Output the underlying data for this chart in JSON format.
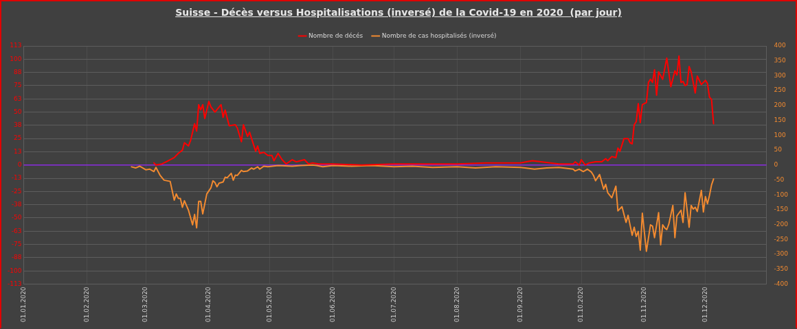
{
  "chart_data": {
    "type": "line",
    "title": "Suisse - Décès versus Hospitalisations (inversé) de la Covid-19 en 2020  (par jour)",
    "legend": "top",
    "grid": true,
    "marker": "none",
    "line_style": "solid",
    "xlim": [
      "2020-01-01",
      "2020-12-31"
    ],
    "xticks": [
      {
        "value": "2020-01-01",
        "label": "01.01.2020"
      },
      {
        "value": "2020-02-01",
        "label": "01.02.2020"
      },
      {
        "value": "2020-03-01",
        "label": "01.03.2020"
      },
      {
        "value": "2020-04-01",
        "label": "01.04.2020"
      },
      {
        "value": "2020-05-01",
        "label": "01.05.2020"
      },
      {
        "value": "2020-06-01",
        "label": "01.06.2020"
      },
      {
        "value": "2020-07-01",
        "label": "01.07.2020"
      },
      {
        "value": "2020-08-01",
        "label": "01.08.2020"
      },
      {
        "value": "2020-09-01",
        "label": "01.09.2020"
      },
      {
        "value": "2020-10-01",
        "label": "01.10.2020"
      },
      {
        "value": "2020-11-01",
        "label": "01.11.2020"
      },
      {
        "value": "2020-12-01",
        "label": "01.12.2020"
      }
    ],
    "ylim": [
      -112.5,
      112.5
    ],
    "yticks": [
      {
        "value": -112.5,
        "label": "-113"
      },
      -100,
      {
        "value": -87.5,
        "label": "-88"
      },
      -75,
      {
        "value": -62.5,
        "label": "-63"
      },
      -50,
      {
        "value": -37.5,
        "label": "-38"
      },
      -25,
      {
        "value": -12.5,
        "label": "-13"
      },
      0,
      {
        "value": 12.5,
        "label": "13"
      },
      25,
      {
        "value": 37.5,
        "label": "38"
      },
      50,
      {
        "value": 62.5,
        "label": "63"
      },
      75,
      {
        "value": 87.5,
        "label": "88"
      },
      100,
      {
        "value": 112.5,
        "label": "113"
      }
    ],
    "ref_lines": [
      {
        "axis": "y",
        "value": 0,
        "color": "#8a2be2"
      }
    ],
    "y2lim": [
      -400,
      400
    ],
    "y2ticks": [
      -400,
      -350,
      -300,
      -250,
      -200,
      -150,
      -100,
      -50,
      0,
      50,
      100,
      150,
      200,
      250,
      300,
      350,
      400
    ],
    "series": [
      {
        "name": "Nombre de décés",
        "color": "#ff0000",
        "x": [
          "2020-03-05",
          "2020-03-06",
          "2020-03-09",
          "2020-03-12",
          "2020-03-15",
          "2020-03-17",
          "2020-03-19",
          "2020-03-20",
          "2020-03-22",
          "2020-03-23",
          "2020-03-25",
          "2020-03-26",
          "2020-03-27",
          "2020-03-28",
          "2020-03-29",
          "2020-03-30",
          "2020-04-01",
          "2020-04-02",
          "2020-04-04",
          "2020-04-07",
          "2020-04-08",
          "2020-04-09",
          "2020-04-11",
          "2020-04-14",
          "2020-04-15",
          "2020-04-17",
          "2020-04-18",
          "2020-04-20",
          "2020-04-21",
          "2020-04-22",
          "2020-04-24",
          "2020-04-25",
          "2020-04-26",
          "2020-04-28",
          "2020-04-30",
          "2020-05-02",
          "2020-05-03",
          "2020-05-05",
          "2020-05-07",
          "2020-05-09",
          "2020-05-12",
          "2020-05-14",
          "2020-05-16",
          "2020-05-18",
          "2020-05-20",
          "2020-05-22",
          "2020-05-25",
          "2020-06-01",
          "2020-06-15",
          "2020-07-01",
          "2020-07-15",
          "2020-08-01",
          "2020-08-15",
          "2020-09-01",
          "2020-09-07",
          "2020-09-20",
          "2020-09-27",
          "2020-09-28",
          "2020-09-30",
          "2020-10-01",
          "2020-10-03",
          "2020-10-05",
          "2020-10-08",
          "2020-10-11",
          "2020-10-13",
          "2020-10-14",
          "2020-10-16",
          "2020-10-18",
          "2020-10-19",
          "2020-10-20",
          "2020-10-22",
          "2020-10-24",
          "2020-10-25",
          "2020-10-26",
          "2020-10-27",
          "2020-10-28",
          "2020-10-29",
          "2020-10-30",
          "2020-10-31",
          "2020-11-02",
          "2020-11-03",
          "2020-11-04",
          "2020-11-05",
          "2020-11-06",
          "2020-11-07",
          "2020-11-08",
          "2020-11-10",
          "2020-11-12",
          "2020-11-14",
          "2020-11-16",
          "2020-11-17",
          "2020-11-18",
          "2020-11-19",
          "2020-11-20",
          "2020-11-21",
          "2020-11-22",
          "2020-11-23",
          "2020-11-24",
          "2020-11-26",
          "2020-11-27",
          "2020-11-29",
          "2020-12-01",
          "2020-12-02",
          "2020-12-03",
          "2020-12-04",
          "2020-12-05"
        ],
        "values": [
          2,
          0,
          1,
          4,
          7,
          11,
          14,
          21,
          18,
          23,
          39,
          32,
          57,
          52,
          57,
          44,
          60,
          55,
          50,
          57,
          45,
          52,
          37,
          38,
          35,
          22,
          38,
          27,
          31,
          25,
          13,
          18,
          11,
          12,
          9,
          9,
          4,
          11,
          5,
          1,
          5,
          3,
          4,
          5,
          1,
          2,
          1,
          1,
          0,
          1,
          1,
          1,
          2,
          2,
          4,
          1,
          1,
          3,
          0,
          5,
          0,
          2,
          3,
          3,
          6,
          4,
          8,
          7,
          16,
          13,
          25,
          25,
          21,
          20,
          38,
          41,
          58,
          40,
          57,
          59,
          78,
          81,
          78,
          90,
          66,
          88,
          81,
          101,
          74,
          89,
          85,
          103,
          78,
          79,
          75,
          76,
          93,
          88,
          68,
          84,
          76,
          80,
          77,
          64,
          62,
          39
        ]
      },
      {
        "name": "Nombre de cas hospitalisés (inversé)",
        "color": "#f28a30",
        "axis": "y2",
        "x": [
          "2020-02-23",
          "2020-02-25",
          "2020-02-27",
          "2020-02-29",
          "2020-03-01",
          "2020-03-03",
          "2020-03-05",
          "2020-03-06",
          "2020-03-08",
          "2020-03-10",
          "2020-03-13",
          "2020-03-15",
          "2020-03-16",
          "2020-03-17",
          "2020-03-18",
          "2020-03-19",
          "2020-03-20",
          "2020-03-22",
          "2020-03-24",
          "2020-03-25",
          "2020-03-26",
          "2020-03-27",
          "2020-03-28",
          "2020-03-29",
          "2020-03-31",
          "2020-04-02",
          "2020-04-03",
          "2020-04-04",
          "2020-04-05",
          "2020-04-06",
          "2020-04-08",
          "2020-04-09",
          "2020-04-10",
          "2020-04-12",
          "2020-04-13",
          "2020-04-14",
          "2020-04-15",
          "2020-04-17",
          "2020-04-18",
          "2020-04-20",
          "2020-04-22",
          "2020-04-23",
          "2020-04-25",
          "2020-04-26",
          "2020-04-28",
          "2020-04-30",
          "2020-05-05",
          "2020-05-12",
          "2020-05-16",
          "2020-05-22",
          "2020-05-24",
          "2020-05-27",
          "2020-06-01",
          "2020-06-10",
          "2020-06-20",
          "2020-07-01",
          "2020-07-10",
          "2020-07-20",
          "2020-08-01",
          "2020-08-10",
          "2020-08-20",
          "2020-09-01",
          "2020-09-08",
          "2020-09-14",
          "2020-09-20",
          "2020-09-27",
          "2020-09-28",
          "2020-09-30",
          "2020-10-02",
          "2020-10-04",
          "2020-10-06",
          "2020-10-07",
          "2020-10-08",
          "2020-10-10",
          "2020-10-12",
          "2020-10-13",
          "2020-10-14",
          "2020-10-16",
          "2020-10-18",
          "2020-10-19",
          "2020-10-21",
          "2020-10-23",
          "2020-10-24",
          "2020-10-26",
          "2020-10-27",
          "2020-10-28",
          "2020-10-29",
          "2020-10-30",
          "2020-10-31",
          "2020-11-02",
          "2020-11-04",
          "2020-11-05",
          "2020-11-06",
          "2020-11-08",
          "2020-11-09",
          "2020-11-10",
          "2020-11-11",
          "2020-11-12",
          "2020-11-13",
          "2020-11-15",
          "2020-11-16",
          "2020-11-17",
          "2020-11-19",
          "2020-11-20",
          "2020-11-21",
          "2020-11-23",
          "2020-11-24",
          "2020-11-25",
          "2020-11-26",
          "2020-11-27",
          "2020-11-29",
          "2020-11-30",
          "2020-12-01",
          "2020-12-02",
          "2020-12-03",
          "2020-12-04",
          "2020-12-05"
        ],
        "values": [
          -6,
          -10,
          -4,
          -12,
          -16,
          -14,
          -22,
          -8,
          -34,
          -51,
          -55,
          -118,
          -97,
          -112,
          -112,
          -142,
          -120,
          -152,
          -201,
          -166,
          -211,
          -122,
          -122,
          -164,
          -97,
          -77,
          -53,
          -59,
          -73,
          -61,
          -57,
          -41,
          -43,
          -28,
          -51,
          -34,
          -35,
          -18,
          -22,
          -20,
          -10,
          -14,
          -6,
          -14,
          -4,
          -6,
          -2,
          -4,
          -2,
          0,
          -2,
          -6,
          -2,
          -4,
          -2,
          -6,
          -4,
          -8,
          -6,
          -10,
          -6,
          -8,
          -14,
          -10,
          -8,
          -14,
          -20,
          -14,
          -22,
          -14,
          -24,
          -35,
          -53,
          -32,
          -81,
          -65,
          -93,
          -110,
          -71,
          -154,
          -140,
          -193,
          -169,
          -236,
          -209,
          -240,
          -223,
          -286,
          -162,
          -290,
          -201,
          -205,
          -244,
          -160,
          -268,
          -201,
          -211,
          -217,
          -199,
          -136,
          -244,
          -171,
          -152,
          -193,
          -93,
          -209,
          -136,
          -148,
          -142,
          -156,
          -85,
          -158,
          -106,
          -130,
          -102,
          -67,
          -47
        ]
      }
    ]
  }
}
